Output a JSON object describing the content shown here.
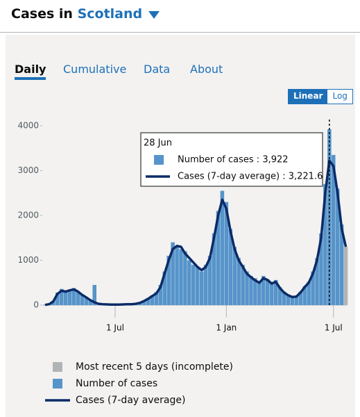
{
  "header": {
    "title": "Cases in",
    "location": "Scotland"
  },
  "tabs": [
    "Daily",
    "Cumulative",
    "Data",
    "About"
  ],
  "scale_toggle": [
    "Linear",
    "Log"
  ],
  "chart_data": {
    "type": "bar",
    "categories": [
      null,
      null,
      null,
      null,
      null,
      null,
      null,
      null,
      null,
      null,
      null,
      null,
      null,
      null,
      null,
      null,
      null,
      "1 Jul",
      null,
      null,
      null,
      null,
      null,
      null,
      null,
      null,
      null,
      null,
      null,
      null,
      null,
      null,
      null,
      null,
      null,
      null,
      null,
      null,
      null,
      null,
      null,
      null,
      null,
      null,
      "1 Jan",
      null,
      null,
      null,
      null,
      null,
      null,
      null,
      null,
      null,
      null,
      null,
      null,
      null,
      null,
      null,
      null,
      null,
      null,
      null,
      null,
      null,
      null,
      null,
      null,
      null,
      "1 Jul",
      null,
      null,
      null
    ],
    "series": [
      {
        "name": "Most recent 5 days (incomplete)",
        "color": "#b1b4b6",
        "values": [
          null,
          null,
          null,
          null,
          null,
          null,
          null,
          null,
          null,
          null,
          null,
          null,
          null,
          null,
          null,
          null,
          null,
          null,
          null,
          null,
          null,
          null,
          null,
          null,
          null,
          null,
          null,
          null,
          null,
          null,
          null,
          null,
          null,
          null,
          null,
          null,
          null,
          null,
          null,
          null,
          null,
          null,
          null,
          null,
          null,
          null,
          null,
          null,
          null,
          null,
          null,
          null,
          null,
          null,
          null,
          null,
          null,
          null,
          null,
          null,
          null,
          null,
          null,
          null,
          null,
          null,
          null,
          null,
          null,
          null,
          null,
          null,
          null,
          1300
        ]
      },
      {
        "name": "Number of cases",
        "color": "#5694ca",
        "values": [
          10,
          30,
          100,
          280,
          360,
          310,
          340,
          380,
          290,
          240,
          160,
          120,
          450,
          30,
          20,
          15,
          10,
          15,
          10,
          15,
          20,
          25,
          35,
          60,
          100,
          160,
          220,
          290,
          450,
          750,
          1100,
          1400,
          1300,
          1250,
          1200,
          1000,
          900,
          850,
          750,
          900,
          1100,
          1600,
          2100,
          2550,
          2300,
          1700,
          1300,
          1050,
          900,
          750,
          650,
          600,
          520,
          650,
          580,
          500,
          560,
          400,
          300,
          230,
          190,
          200,
          300,
          420,
          520,
          750,
          1050,
          1600,
          2700,
          3922,
          3350,
          2600,
          1800,
          null
        ]
      },
      {
        "name": "Cases (7-day average)",
        "color": "#0b2b66",
        "type": "line",
        "values": [
          5,
          20,
          80,
          250,
          320,
          300,
          330,
          350,
          300,
          230,
          170,
          110,
          60,
          30,
          20,
          15,
          12,
          12,
          12,
          15,
          18,
          20,
          30,
          50,
          90,
          140,
          200,
          260,
          400,
          700,
          1000,
          1250,
          1320,
          1300,
          1150,
          1050,
          950,
          850,
          780,
          850,
          1050,
          1500,
          2000,
          2350,
          2150,
          1650,
          1250,
          1000,
          850,
          700,
          620,
          550,
          500,
          600,
          560,
          480,
          520,
          380,
          280,
          220,
          180,
          190,
          280,
          400,
          500,
          700,
          1000,
          1500,
          2500,
          3221.6,
          3100,
          2500,
          1700,
          1300
        ]
      }
    ],
    "ylim": [
      0,
      4000
    ],
    "yticks": [
      0,
      1000,
      2000,
      3000,
      4000
    ],
    "grid": false,
    "log_scale": false,
    "tooltip": {
      "title": "28 Jun",
      "lines": [
        "Number of cases : 3,922",
        "Cases (7-day average) : 3,221.6"
      ]
    }
  }
}
